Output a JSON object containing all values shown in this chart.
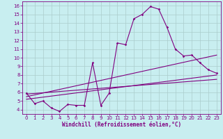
{
  "xlabel": "Windchill (Refroidissement éolien,°C)",
  "background_color": "#c8eef0",
  "line_color": "#800080",
  "grid_color": "#aacccc",
  "xlim": [
    -0.5,
    23.5
  ],
  "ylim": [
    3.5,
    16.5
  ],
  "xticks": [
    0,
    1,
    2,
    3,
    4,
    5,
    6,
    7,
    8,
    9,
    10,
    11,
    12,
    13,
    14,
    15,
    16,
    17,
    18,
    19,
    20,
    21,
    22,
    23
  ],
  "yticks": [
    4,
    5,
    6,
    7,
    8,
    9,
    10,
    11,
    12,
    13,
    14,
    15,
    16
  ],
  "curve1_x": [
    0,
    1,
    2,
    3,
    4,
    5,
    6,
    7,
    8,
    9,
    10,
    11,
    12,
    13,
    14,
    15,
    16,
    17,
    18,
    19,
    20,
    21,
    22,
    23
  ],
  "curve1_y": [
    5.9,
    4.7,
    5.0,
    4.2,
    3.8,
    4.6,
    4.5,
    4.5,
    9.4,
    4.5,
    5.9,
    11.7,
    11.5,
    14.5,
    15.0,
    15.9,
    15.6,
    13.5,
    11.0,
    10.2,
    10.3,
    9.4,
    8.6,
    8.2
  ],
  "curve2_x": [
    0,
    23
  ],
  "curve2_y": [
    5.5,
    10.3
  ],
  "curve3_x": [
    0,
    23
  ],
  "curve3_y": [
    5.2,
    8.0
  ],
  "curve4_x": [
    0,
    23
  ],
  "curve4_y": [
    5.8,
    7.5
  ]
}
